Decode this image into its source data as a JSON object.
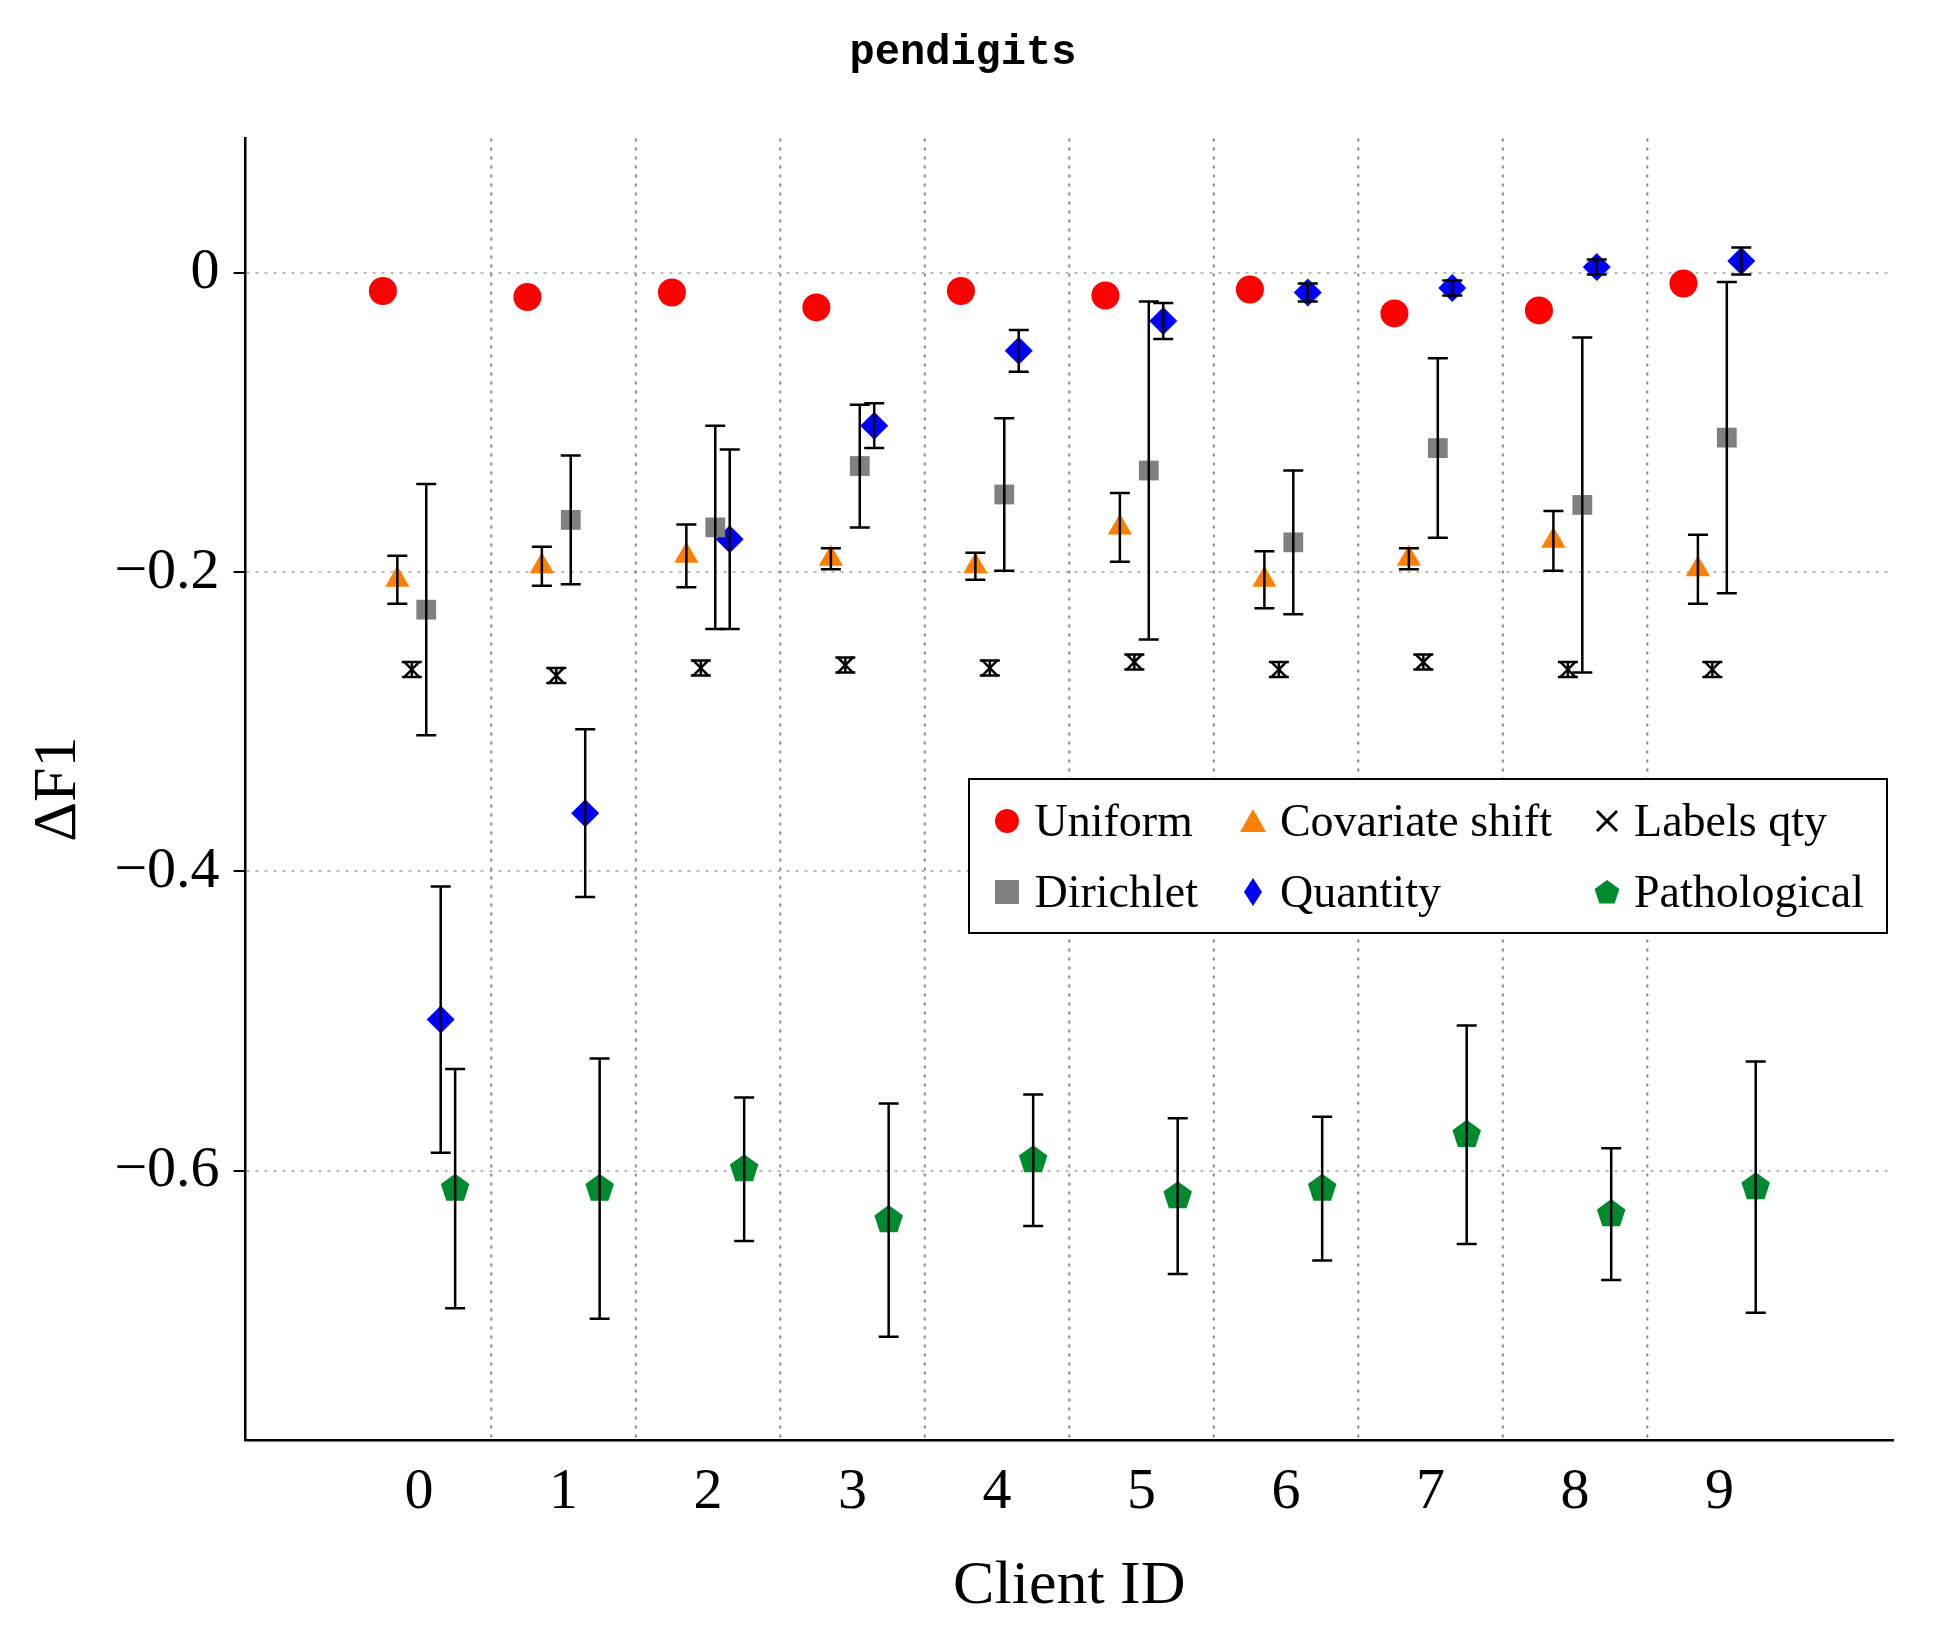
{
  "chart_data": {
    "type": "scatter",
    "title": "pendigits",
    "xlabel": "Client ID",
    "ylabel": "ΔF1",
    "xlim": [
      -1.2,
      10.2
    ],
    "xticks": [
      0,
      1,
      2,
      3,
      4,
      5,
      6,
      7,
      8,
      9
    ],
    "ylim": [
      -0.78,
      0.09
    ],
    "yticks": [
      0,
      {
        "value": -0.2,
        "label": "−0.2"
      },
      {
        "value": -0.4,
        "label": "−0.4"
      },
      {
        "value": -0.6,
        "label": "−0.6"
      }
    ],
    "grid": "y",
    "legend": "right",
    "ref_lines": [
      {
        "axis": "x",
        "value": 0.5,
        "color": "#888888",
        "line_style": "dotted"
      },
      {
        "axis": "x",
        "value": 1.5,
        "color": "#888888",
        "line_style": "dotted"
      },
      {
        "axis": "x",
        "value": 2.5,
        "color": "#888888",
        "line_style": "dotted"
      },
      {
        "axis": "x",
        "value": 3.5,
        "color": "#888888",
        "line_style": "dotted"
      },
      {
        "axis": "x",
        "value": 4.5,
        "color": "#888888",
        "line_style": "dotted"
      },
      {
        "axis": "x",
        "value": 5.5,
        "color": "#888888",
        "line_style": "dotted"
      },
      {
        "axis": "x",
        "value": 6.5,
        "color": "#888888",
        "line_style": "dotted"
      },
      {
        "axis": "x",
        "value": 7.5,
        "color": "#888888",
        "line_style": "dotted"
      },
      {
        "axis": "x",
        "value": 8.5,
        "color": "#888888",
        "line_style": "dotted"
      }
    ],
    "series": [
      {
        "name": "Uniform",
        "color": "#ff0000",
        "marker": "circle",
        "x": [
          -0.25,
          0.75,
          1.75,
          2.75,
          3.75,
          4.75,
          5.75,
          6.75,
          7.75,
          8.75
        ],
        "values": [
          -0.012,
          -0.016,
          -0.013,
          -0.023,
          -0.012,
          -0.015,
          -0.011,
          -0.027,
          -0.025,
          -0.007
        ]
      },
      {
        "name": "Covariate shift",
        "color": "#ff8000",
        "marker": "triangle",
        "x": [
          -0.15,
          0.85,
          1.85,
          2.85,
          3.85,
          4.85,
          5.85,
          6.85,
          7.85,
          8.85
        ],
        "values": [
          -0.205,
          -0.196,
          -0.189,
          -0.191,
          -0.196,
          -0.17,
          -0.205,
          -0.191,
          -0.179,
          -0.198
        ],
        "errors": [
          0.016,
          0.013,
          0.021,
          0.007,
          0.009,
          0.023,
          0.019,
          0.007,
          0.02,
          0.023
        ]
      },
      {
        "name": "Labels qty",
        "color": "#000000",
        "marker": "cross",
        "x": [
          -0.05,
          0.95,
          1.95,
          2.95,
          3.95,
          4.95,
          5.95,
          6.95,
          7.95,
          8.95
        ],
        "values": [
          -0.265,
          -0.269,
          -0.264,
          -0.262,
          -0.264,
          -0.26,
          -0.265,
          -0.26,
          -0.265,
          -0.265
        ],
        "errors": [
          0.005,
          0.005,
          0.005,
          0.005,
          0.005,
          0.005,
          0.005,
          0.005,
          0.005,
          0.005
        ]
      },
      {
        "name": "Dirichlet",
        "color": "#808080",
        "marker": "square",
        "x": [
          0.05,
          1.05,
          2.05,
          3.05,
          4.05,
          5.05,
          6.05,
          7.05,
          8.05,
          9.05
        ],
        "values": [
          -0.225,
          -0.165,
          -0.17,
          -0.129,
          -0.148,
          -0.132,
          -0.18,
          -0.117,
          -0.155,
          -0.11
        ],
        "errors": [
          0.084,
          0.043,
          0.068,
          0.041,
          0.051,
          0.113,
          0.048,
          0.06,
          0.112,
          0.104
        ]
      },
      {
        "name": "Quantity",
        "color": "#0000ff",
        "marker": "diamond",
        "x": [
          0.15,
          1.15,
          2.15,
          3.15,
          4.15,
          5.15,
          6.15,
          7.15,
          8.15,
          9.15
        ],
        "values": [
          -0.499,
          -0.361,
          -0.178,
          -0.102,
          -0.052,
          -0.032,
          -0.013,
          -0.01,
          0.004,
          0.008
        ],
        "errors": [
          0.089,
          0.056,
          0.06,
          0.015,
          0.014,
          0.012,
          0.006,
          0.005,
          0.005,
          0.009
        ]
      },
      {
        "name": "Pathological",
        "color": "#008a2e",
        "x": [
          0.25,
          1.25,
          2.25,
          3.25,
          4.25,
          5.25,
          6.25,
          7.25,
          8.25,
          9.25
        ],
        "values": [
          -0.612,
          -0.612,
          -0.599,
          -0.633,
          -0.593,
          -0.617,
          -0.612,
          -0.576,
          -0.629,
          -0.611
        ],
        "errors": [
          0.08,
          0.087,
          0.048,
          0.078,
          0.044,
          0.052,
          0.048,
          0.073,
          0.044,
          0.084
        ]
      }
    ]
  }
}
